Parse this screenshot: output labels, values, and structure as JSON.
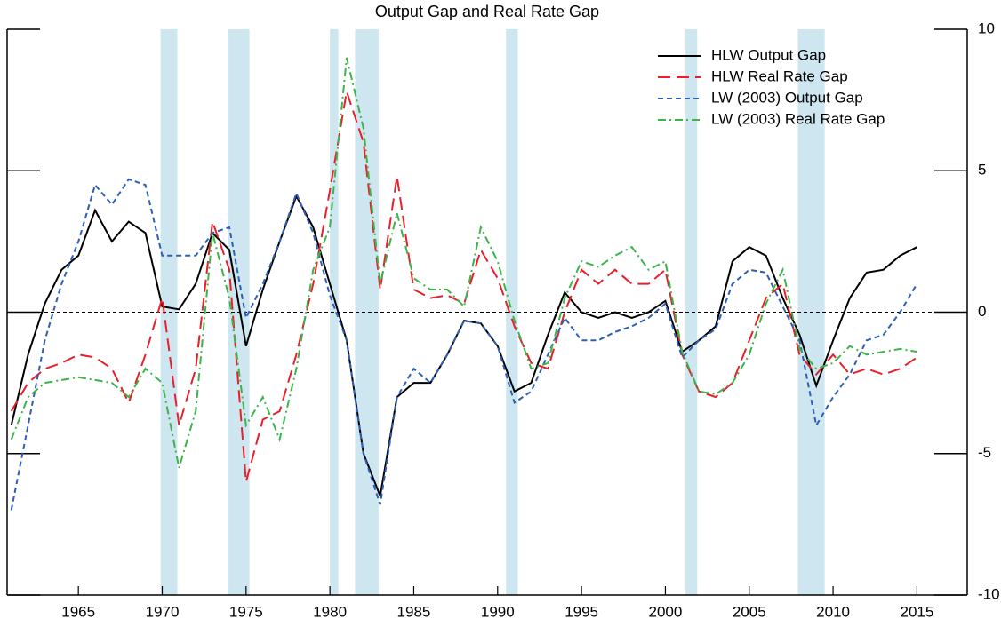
{
  "chart_data": {
    "type": "line",
    "title": "Output Gap and Real Rate Gap",
    "x": [
      1961,
      1962,
      1963,
      1964,
      1965,
      1966,
      1967,
      1968,
      1969,
      1970,
      1971,
      1972,
      1973,
      1974,
      1975,
      1976,
      1977,
      1978,
      1979,
      1980,
      1981,
      1982,
      1983,
      1984,
      1985,
      1986,
      1987,
      1988,
      1989,
      1990,
      1991,
      1992,
      1993,
      1994,
      1995,
      1996,
      1997,
      1998,
      1999,
      2000,
      2001,
      2002,
      2003,
      2004,
      2005,
      2006,
      2007,
      2008,
      2009,
      2010,
      2011,
      2012,
      2013,
      2014,
      2015
    ],
    "series": [
      {
        "name": "HLW Output Gap",
        "color": "#000000",
        "dash": "solid",
        "values": [
          -4.0,
          -1.5,
          0.3,
          1.5,
          2.0,
          3.6,
          2.5,
          3.2,
          2.8,
          0.2,
          0.1,
          1.0,
          2.8,
          2.2,
          -1.2,
          0.8,
          2.5,
          4.1,
          3.0,
          1.0,
          -1.0,
          -5.0,
          -6.5,
          -3.0,
          -2.5,
          -2.5,
          -1.5,
          -0.3,
          -0.4,
          -1.2,
          -2.8,
          -2.5,
          -0.8,
          0.7,
          0.0,
          -0.2,
          0.0,
          -0.2,
          0.0,
          0.4,
          -1.4,
          -1.0,
          -0.5,
          1.8,
          2.3,
          2.0,
          0.5,
          -0.8,
          -2.6,
          -1.0,
          0.5,
          1.4,
          1.5,
          2.0,
          2.3
        ]
      },
      {
        "name": "HLW Real Rate Gap",
        "color": "#e8202a",
        "dash": "long",
        "values": [
          -3.5,
          -2.5,
          -2.0,
          -1.8,
          -1.5,
          -1.6,
          -2.0,
          -3.2,
          -1.5,
          0.5,
          -4.0,
          -2.0,
          3.2,
          1.5,
          -6.0,
          -3.8,
          -3.5,
          -1.5,
          1.0,
          4.3,
          7.8,
          6.0,
          0.8,
          4.8,
          0.8,
          0.5,
          0.6,
          0.3,
          2.2,
          1.2,
          -0.5,
          -1.8,
          -2.0,
          0.0,
          1.5,
          1.0,
          1.5,
          1.0,
          1.0,
          1.5,
          -1.5,
          -2.8,
          -3.0,
          -2.5,
          -1.0,
          0.5,
          1.0,
          -1.5,
          -2.2,
          -1.5,
          -2.2,
          -2.0,
          -2.2,
          -2.0,
          -1.6
        ]
      },
      {
        "name": "LW (2003) Output Gap",
        "color": "#2d5fb4",
        "dash": "short",
        "values": [
          -7.0,
          -4.0,
          -1.0,
          1.0,
          2.5,
          4.5,
          3.8,
          4.7,
          4.5,
          2.0,
          2.0,
          2.0,
          2.8,
          3.0,
          -0.2,
          1.0,
          2.5,
          4.2,
          2.8,
          0.6,
          -1.0,
          -5.0,
          -6.8,
          -3.0,
          -2.0,
          -2.5,
          -1.5,
          -0.3,
          -0.4,
          -1.2,
          -3.2,
          -2.8,
          -1.5,
          -0.2,
          -1.0,
          -1.0,
          -0.7,
          -0.5,
          -0.2,
          0.3,
          -1.6,
          -1.0,
          -0.6,
          1.0,
          1.5,
          1.4,
          0.2,
          -1.0,
          -4.0,
          -3.0,
          -2.2,
          -1.0,
          -0.8,
          0.0,
          1.0
        ]
      },
      {
        "name": "LW (2003) Real Rate Gap",
        "color": "#3bb44a",
        "dash": "dashdot",
        "values": [
          -4.5,
          -3.0,
          -2.5,
          -2.4,
          -2.3,
          -2.4,
          -2.5,
          -3.0,
          -2.0,
          -2.5,
          -5.5,
          -3.5,
          2.8,
          0.5,
          -4.0,
          -3.0,
          -4.5,
          -2.0,
          1.5,
          3.0,
          9.0,
          6.5,
          1.0,
          3.5,
          1.2,
          0.8,
          0.8,
          0.2,
          3.0,
          1.8,
          -0.3,
          -2.0,
          -1.8,
          0.5,
          1.8,
          1.6,
          2.0,
          2.3,
          1.5,
          1.8,
          -1.4,
          -2.8,
          -2.9,
          -2.5,
          -1.5,
          0.3,
          1.5,
          -1.3,
          -2.0,
          -1.8,
          -1.2,
          -1.5,
          -1.4,
          -1.3,
          -1.4
        ]
      }
    ],
    "shaded_periods": [
      [
        1969.9,
        1970.9
      ],
      [
        1973.9,
        1975.2
      ],
      [
        1980.0,
        1980.5
      ],
      [
        1981.5,
        1982.9
      ],
      [
        1990.5,
        1991.2
      ],
      [
        2001.2,
        2001.9
      ],
      [
        2007.9,
        2009.5
      ]
    ],
    "shade_color": "#cde6f0",
    "xlim": [
      1960.75,
      2018
    ],
    "xticks": [
      1965,
      1970,
      1975,
      1980,
      1985,
      1990,
      1995,
      2000,
      2005,
      2010,
      2015
    ],
    "ylim": [
      -10,
      10
    ],
    "yticks": [
      -10,
      -5,
      0,
      5,
      10
    ],
    "zero_line": true,
    "legend": "upper right"
  }
}
